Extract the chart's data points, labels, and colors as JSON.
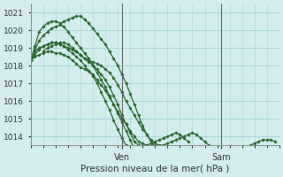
{
  "xlabel": "Pression niveau de la mer( hPa )",
  "bg_color": "#d4ecee",
  "grid_color": "#aad4d8",
  "line_color": "#2d6a2d",
  "ylim": [
    1013.5,
    1021.5
  ],
  "yticks": [
    1014,
    1015,
    1016,
    1017,
    1018,
    1019,
    1020,
    1021
  ],
  "xlim": [
    0,
    60
  ],
  "ven_x": 22,
  "sam_x": 46,
  "series": [
    {
      "start": 0,
      "step": 1,
      "values": [
        1018.3,
        1018.6,
        1018.9,
        1019.1,
        1019.2,
        1019.3,
        1019.3,
        1019.2,
        1019.1,
        1019.0,
        1018.9,
        1018.8,
        1018.6,
        1018.4,
        1018.2,
        1018.0,
        1017.8,
        1017.5,
        1017.2,
        1016.8,
        1016.3,
        1015.8,
        1015.2,
        1014.7,
        1014.2,
        1013.7,
        1013.5,
        1013.4,
        1013.5,
        1013.6,
        1013.7,
        1013.8,
        1013.9,
        1014.0,
        1014.1,
        1014.2,
        1014.1,
        1013.9,
        1013.7
      ]
    },
    {
      "start": 0,
      "step": 1,
      "values": [
        1018.3,
        1018.8,
        1019.0,
        1019.1,
        1019.2,
        1019.3,
        1019.3,
        1019.2,
        1019.1,
        1018.9,
        1018.7,
        1018.5,
        1018.3,
        1018.0,
        1017.7,
        1017.4,
        1017.0,
        1016.5,
        1016.0,
        1015.5,
        1014.9,
        1014.4,
        1013.9,
        1013.5,
        1013.2
      ]
    },
    {
      "start": 0,
      "step": 1,
      "values": [
        1018.3,
        1018.9,
        1019.4,
        1019.7,
        1019.9,
        1020.1,
        1020.2,
        1020.3,
        1020.5,
        1020.6,
        1020.7,
        1020.8,
        1020.8,
        1020.6,
        1020.4,
        1020.1,
        1019.8,
        1019.5,
        1019.2,
        1018.8,
        1018.4,
        1018.0,
        1017.5,
        1017.0,
        1016.4,
        1015.8,
        1015.2,
        1014.6,
        1014.1,
        1013.7,
        1013.4,
        1013.2,
        1013.1,
        1013.0,
        1013.1
      ]
    },
    {
      "start": 0,
      "step": 1,
      "values": [
        1018.3,
        1019.1,
        1019.9,
        1020.2,
        1020.4,
        1020.5,
        1020.5,
        1020.4,
        1020.2,
        1019.9,
        1019.6,
        1019.3,
        1019.0,
        1018.7,
        1018.4,
        1018.0,
        1017.6,
        1017.2,
        1016.8,
        1016.3,
        1015.8,
        1015.3,
        1014.8,
        1014.3,
        1013.8,
        1013.3,
        1013.0,
        1013.0,
        1013.0
      ]
    },
    {
      "start": 0,
      "step": 1,
      "values": [
        1018.3,
        1018.5,
        1018.6,
        1018.7,
        1018.8,
        1018.8,
        1018.7,
        1018.7,
        1018.6,
        1018.5,
        1018.3,
        1018.1,
        1017.9,
        1017.8,
        1017.7,
        1017.5,
        1017.2,
        1016.9,
        1016.6,
        1016.2,
        1015.8,
        1015.4,
        1015.0,
        1014.7,
        1014.3,
        1014.0,
        1013.7,
        1013.6,
        1013.5
      ]
    },
    {
      "start": 3,
      "step": 1,
      "values": [
        1018.8,
        1019.0,
        1019.1,
        1019.2,
        1019.3,
        1019.3,
        1019.2,
        1019.0,
        1018.8,
        1018.6,
        1018.4,
        1018.3,
        1018.2,
        1018.1,
        1018.0,
        1017.8,
        1017.6,
        1017.3,
        1016.9,
        1016.5,
        1016.0,
        1015.6,
        1015.2,
        1014.8,
        1014.4,
        1014.1,
        1013.8,
        1013.6,
        1013.5,
        1013.5,
        1013.6,
        1013.7,
        1013.8,
        1013.9,
        1014.0,
        1014.1,
        1014.2,
        1014.1,
        1013.9,
        1013.7,
        1013.5,
        1013.4,
        1013.3,
        1013.2,
        1013.1,
        1013.1,
        1013.1,
        1013.2,
        1013.3,
        1013.4,
        1013.5,
        1013.6,
        1013.7,
        1013.8,
        1013.8,
        1013.8,
        1013.7
      ]
    }
  ],
  "marker_size": 1.8,
  "linewidth": 0.9
}
